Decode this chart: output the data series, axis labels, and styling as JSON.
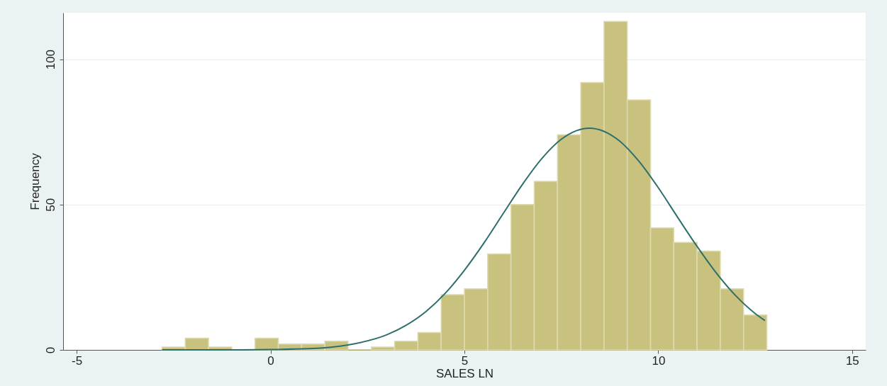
{
  "chart_data": {
    "type": "histogram",
    "xlabel": "SALES LN",
    "ylabel": "Frequency",
    "bins": [
      -2.8,
      -2.2,
      -1.6,
      -1.0,
      -0.4,
      0.2,
      0.8,
      1.4,
      2.0,
      2.6,
      3.2,
      3.8,
      4.4,
      5.0,
      5.6,
      6.2,
      6.8,
      7.4,
      8.0,
      8.6,
      9.2,
      9.8,
      10.4,
      11.0,
      11.6,
      12.2,
      12.8
    ],
    "series": [
      {
        "type": "histogram",
        "color": "#c9c27f",
        "values": [
          1,
          4,
          1,
          0,
          4,
          2,
          2,
          3,
          0,
          1,
          3,
          6,
          19,
          21,
          33,
          50,
          58,
          74,
          92,
          113,
          86,
          42,
          37,
          34,
          21,
          12
        ]
      },
      {
        "type": "line",
        "color": "#2e6f6b",
        "x": [
          -2.8,
          -1,
          0,
          1,
          2,
          3,
          3.5,
          4,
          4.5,
          5,
          5.5,
          6,
          6.5,
          7,
          7.5,
          8.22,
          9,
          9.5,
          10,
          10.5,
          11,
          11.5,
          12,
          12.5,
          12.75
        ],
        "values": [
          0,
          0,
          0.1,
          0.4,
          1.7,
          5.2,
          8.5,
          13.1,
          19.4,
          27.4,
          36.7,
          46.9,
          57.0,
          65.9,
          72.5,
          76.3,
          71.9,
          64.9,
          55.8,
          45.6,
          35.6,
          26.4,
          18.6,
          12.5,
          10.1
        ]
      }
    ],
    "xlim": [
      -5.35,
      15.35
    ],
    "xticks": [
      -5,
      0,
      5,
      10,
      15
    ],
    "ylim": [
      0,
      116
    ],
    "yticks": [
      0,
      50,
      100
    ],
    "grid": "y",
    "legend": false
  }
}
